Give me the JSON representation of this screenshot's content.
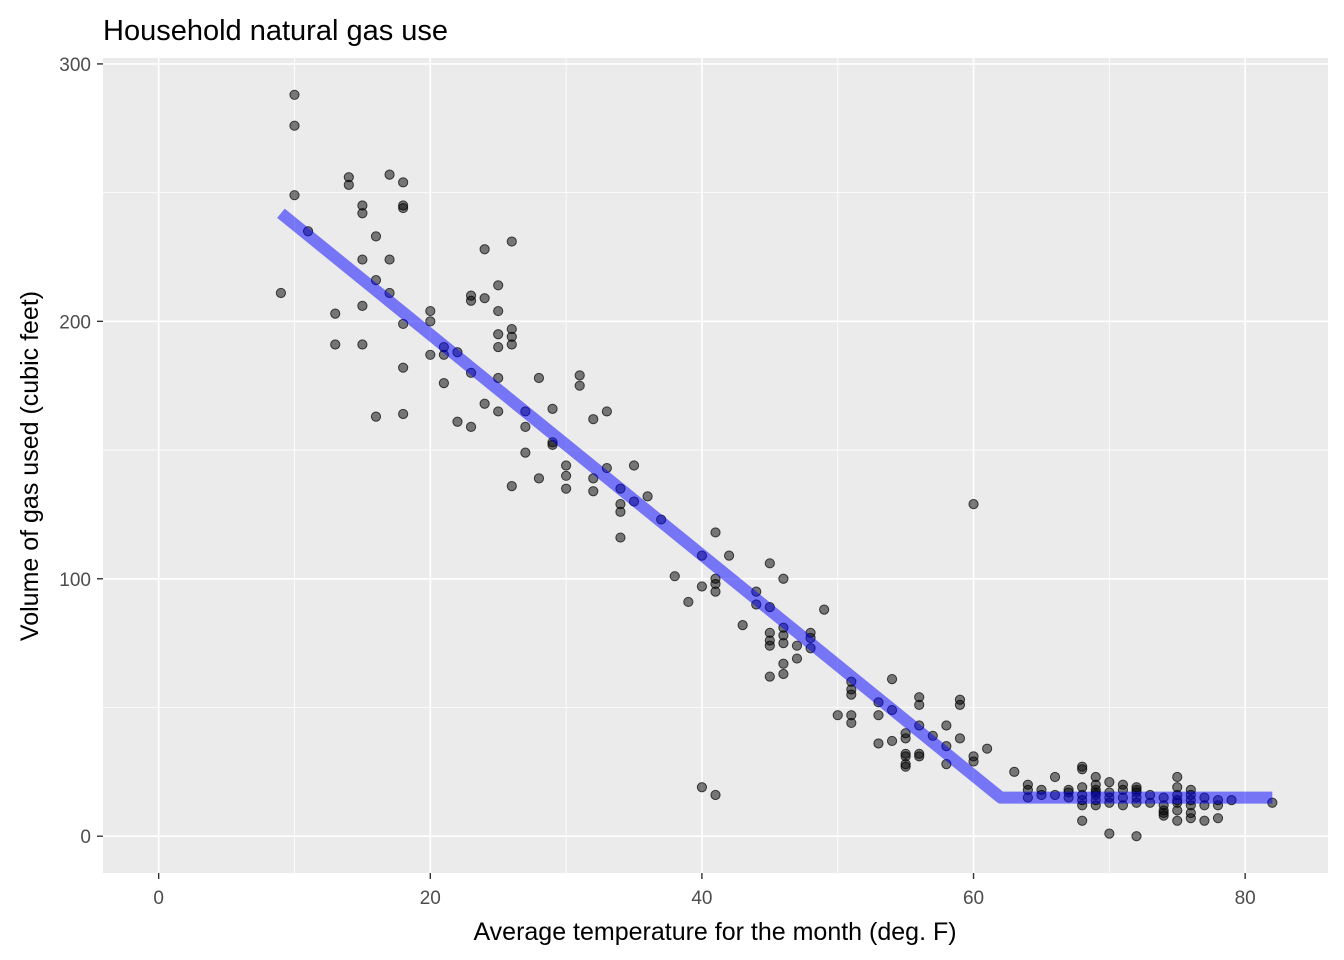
{
  "chart_data": {
    "type": "scatter",
    "title": "Household natural gas use",
    "xlabel": "Average temperature for the month (deg. F)",
    "ylabel": "Volume of gas used (cubic feet)",
    "xlim": [
      -4.1,
      86.1
    ],
    "ylim": [
      -14.3,
      302.3
    ],
    "x_ticks": [
      0,
      20,
      40,
      60,
      80
    ],
    "y_ticks": [
      0,
      100,
      200,
      300
    ],
    "grid": true,
    "panel_background": "#ebebeb",
    "point_color": "#000000",
    "line_color": "#0000ff",
    "series": [
      {
        "kind": "points",
        "points": [
          [
            9,
            211
          ],
          [
            10,
            288
          ],
          [
            10,
            276
          ],
          [
            10,
            249
          ],
          [
            11,
            235
          ],
          [
            13,
            203
          ],
          [
            13,
            191
          ],
          [
            14,
            256
          ],
          [
            14,
            253
          ],
          [
            15,
            245
          ],
          [
            15,
            242
          ],
          [
            15,
            224
          ],
          [
            15,
            206
          ],
          [
            15,
            191
          ],
          [
            16,
            233
          ],
          [
            16,
            216
          ],
          [
            16,
            163
          ],
          [
            17,
            257
          ],
          [
            17,
            224
          ],
          [
            17,
            211
          ],
          [
            18,
            254
          ],
          [
            18,
            245
          ],
          [
            18,
            244
          ],
          [
            18,
            199
          ],
          [
            18,
            182
          ],
          [
            18,
            164
          ],
          [
            20,
            204
          ],
          [
            20,
            200
          ],
          [
            20,
            187
          ],
          [
            21,
            190
          ],
          [
            21,
            187
          ],
          [
            21,
            176
          ],
          [
            22,
            188
          ],
          [
            22,
            161
          ],
          [
            23,
            210
          ],
          [
            23,
            208
          ],
          [
            23,
            180
          ],
          [
            23,
            159
          ],
          [
            24,
            228
          ],
          [
            24,
            209
          ],
          [
            24,
            168
          ],
          [
            25,
            214
          ],
          [
            25,
            204
          ],
          [
            25,
            195
          ],
          [
            25,
            190
          ],
          [
            25,
            178
          ],
          [
            25,
            165
          ],
          [
            26,
            231
          ],
          [
            26,
            197
          ],
          [
            26,
            194
          ],
          [
            26,
            191
          ],
          [
            26,
            136
          ],
          [
            27,
            165
          ],
          [
            27,
            159
          ],
          [
            27,
            149
          ],
          [
            28,
            178
          ],
          [
            28,
            139
          ],
          [
            29,
            166
          ],
          [
            29,
            153
          ],
          [
            29,
            152
          ],
          [
            30,
            144
          ],
          [
            30,
            140
          ],
          [
            30,
            135
          ],
          [
            31,
            179
          ],
          [
            31,
            175
          ],
          [
            32,
            162
          ],
          [
            32,
            139
          ],
          [
            32,
            134
          ],
          [
            33,
            165
          ],
          [
            33,
            143
          ],
          [
            34,
            135
          ],
          [
            34,
            129
          ],
          [
            34,
            126
          ],
          [
            34,
            116
          ],
          [
            35,
            144
          ],
          [
            35,
            130
          ],
          [
            36,
            132
          ],
          [
            37,
            123
          ],
          [
            38,
            101
          ],
          [
            39,
            91
          ],
          [
            40,
            109
          ],
          [
            40,
            97
          ],
          [
            40,
            19
          ],
          [
            41,
            118
          ],
          [
            41,
            100
          ],
          [
            41,
            98
          ],
          [
            41,
            95
          ],
          [
            41,
            16
          ],
          [
            42,
            109
          ],
          [
            43,
            82
          ],
          [
            44,
            95
          ],
          [
            44,
            90
          ],
          [
            45,
            106
          ],
          [
            45,
            89
          ],
          [
            45,
            79
          ],
          [
            45,
            76
          ],
          [
            45,
            74
          ],
          [
            45,
            62
          ],
          [
            46,
            100
          ],
          [
            46,
            81
          ],
          [
            46,
            78
          ],
          [
            46,
            75
          ],
          [
            46,
            67
          ],
          [
            46,
            63
          ],
          [
            47,
            74
          ],
          [
            47,
            69
          ],
          [
            48,
            79
          ],
          [
            48,
            77
          ],
          [
            48,
            73
          ],
          [
            49,
            88
          ],
          [
            50,
            47
          ],
          [
            51,
            60
          ],
          [
            51,
            57
          ],
          [
            51,
            55
          ],
          [
            51,
            47
          ],
          [
            51,
            44
          ],
          [
            53,
            52
          ],
          [
            53,
            47
          ],
          [
            53,
            36
          ],
          [
            54,
            61
          ],
          [
            54,
            49
          ],
          [
            54,
            37
          ],
          [
            55,
            40
          ],
          [
            55,
            38
          ],
          [
            55,
            32
          ],
          [
            55,
            31
          ],
          [
            55,
            28
          ],
          [
            55,
            27
          ],
          [
            56,
            54
          ],
          [
            56,
            51
          ],
          [
            56,
            43
          ],
          [
            56,
            32
          ],
          [
            56,
            31
          ],
          [
            57,
            39
          ],
          [
            58,
            43
          ],
          [
            58,
            35
          ],
          [
            58,
            28
          ],
          [
            59,
            53
          ],
          [
            59,
            51
          ],
          [
            59,
            38
          ],
          [
            60,
            129
          ],
          [
            60,
            31
          ],
          [
            60,
            29
          ],
          [
            61,
            34
          ],
          [
            63,
            25
          ],
          [
            64,
            20
          ],
          [
            64,
            18
          ],
          [
            64,
            15
          ],
          [
            65,
            18
          ],
          [
            65,
            16
          ],
          [
            66,
            23
          ],
          [
            66,
            16
          ],
          [
            67,
            18
          ],
          [
            67,
            17
          ],
          [
            67,
            15
          ],
          [
            68,
            27
          ],
          [
            68,
            26
          ],
          [
            68,
            19
          ],
          [
            68,
            16
          ],
          [
            68,
            14
          ],
          [
            68,
            12
          ],
          [
            68,
            6
          ],
          [
            69,
            23
          ],
          [
            69,
            20
          ],
          [
            69,
            18
          ],
          [
            69,
            17
          ],
          [
            69,
            16
          ],
          [
            69,
            14
          ],
          [
            69,
            12
          ],
          [
            70,
            21
          ],
          [
            70,
            17
          ],
          [
            70,
            15
          ],
          [
            70,
            13
          ],
          [
            70,
            1
          ],
          [
            71,
            20
          ],
          [
            71,
            18
          ],
          [
            71,
            15
          ],
          [
            71,
            12
          ],
          [
            72,
            19
          ],
          [
            72,
            18
          ],
          [
            72,
            17
          ],
          [
            72,
            15
          ],
          [
            72,
            13
          ],
          [
            72,
            0
          ],
          [
            73,
            16
          ],
          [
            73,
            13
          ],
          [
            74,
            15
          ],
          [
            74,
            12
          ],
          [
            74,
            10
          ],
          [
            74,
            9
          ],
          [
            74,
            8
          ],
          [
            75,
            23
          ],
          [
            75,
            19
          ],
          [
            75,
            16
          ],
          [
            75,
            14
          ],
          [
            75,
            13
          ],
          [
            75,
            10
          ],
          [
            75,
            6
          ],
          [
            76,
            18
          ],
          [
            76,
            16
          ],
          [
            76,
            14
          ],
          [
            76,
            12
          ],
          [
            76,
            9
          ],
          [
            76,
            7
          ],
          [
            77,
            15
          ],
          [
            77,
            12
          ],
          [
            77,
            6
          ],
          [
            78,
            14
          ],
          [
            78,
            12
          ],
          [
            78,
            7
          ],
          [
            79,
            14
          ],
          [
            82,
            13
          ]
        ]
      },
      {
        "kind": "fit_line",
        "points": [
          [
            9,
            242
          ],
          [
            62,
            15
          ],
          [
            82,
            15
          ]
        ]
      }
    ]
  }
}
